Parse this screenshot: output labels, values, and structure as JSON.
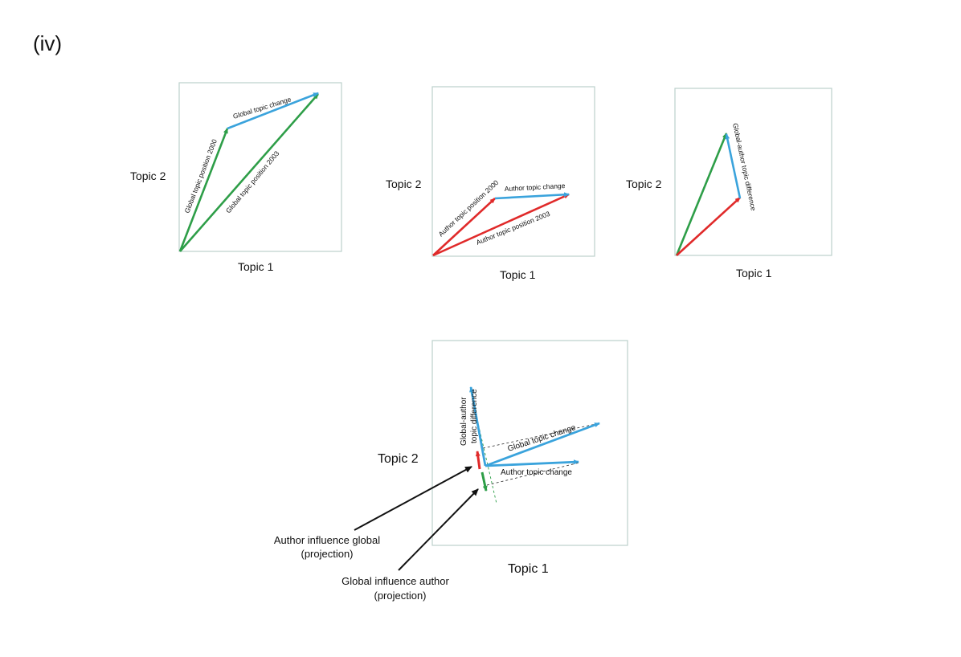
{
  "figure_label": "(iv)",
  "axes": {
    "x": "Topic 1",
    "y": "Topic 2"
  },
  "panel1": {
    "global_topic_change": "Global topic change",
    "global_topic_position_2000": "Global topic position 2000",
    "global_topic_position_2003": "Global topic position 2003"
  },
  "panel2": {
    "author_topic_change": "Author topic change",
    "author_topic_position_2000": "Author topic position 2000",
    "author_topic_position_2003": "Author topic position 2003"
  },
  "panel3": {
    "global_author_topic_difference": "Global-author topic difference"
  },
  "panel4": {
    "global_author_line1": "Global-author",
    "global_author_line2": "topic difference",
    "global_topic_change": "Global topic change",
    "author_topic_change": "Author topic change",
    "author_influence_global_line1": "Author influence global",
    "author_influence_global_line2": "(projection)",
    "global_influence_author_line1": "Global influence author",
    "global_influence_author_line2": "(projection)"
  },
  "colors": {
    "global": "#2e9e48",
    "author": "#e02a2a",
    "change": "#3aa3dc",
    "frame": "#bcd0cc",
    "pointer": "#111111"
  }
}
